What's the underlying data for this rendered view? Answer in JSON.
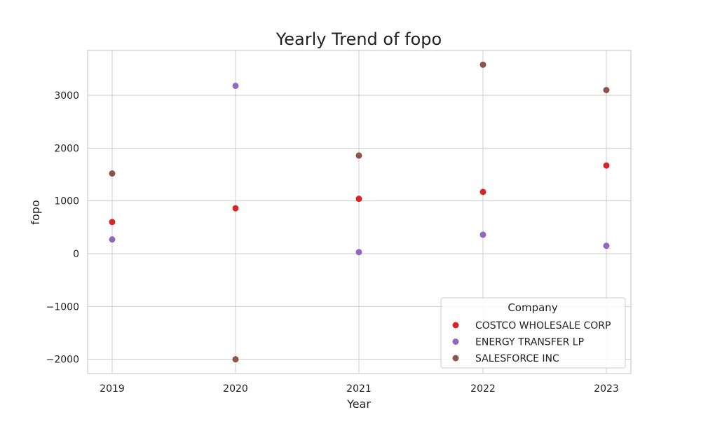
{
  "chart_data": {
    "type": "scatter",
    "title": "Yearly Trend of fopo",
    "xlabel": "Year",
    "ylabel": "fopo",
    "categories": [
      "2019",
      "2020",
      "2021",
      "2022",
      "2023"
    ],
    "ylim": [
      -2270,
      3850
    ],
    "yticks": [
      -2000,
      -1000,
      0,
      1000,
      2000,
      3000
    ],
    "ytick_labels": [
      "−2000",
      "−1000",
      "0",
      "1000",
      "2000",
      "3000"
    ],
    "grid": true,
    "legend": {
      "title": "Company",
      "placement": "lower-right"
    },
    "series": [
      {
        "name": "COSTCO WHOLESALE CORP",
        "color": "#d62728",
        "values": [
          600,
          860,
          1040,
          1170,
          1670
        ]
      },
      {
        "name": "ENERGY TRANSFER LP",
        "color": "#9467bd",
        "values": [
          270,
          3180,
          30,
          360,
          150
        ]
      },
      {
        "name": "SALESFORCE INC",
        "color": "#8c564b",
        "values": [
          1520,
          -2000,
          1860,
          3580,
          3100
        ]
      }
    ]
  }
}
